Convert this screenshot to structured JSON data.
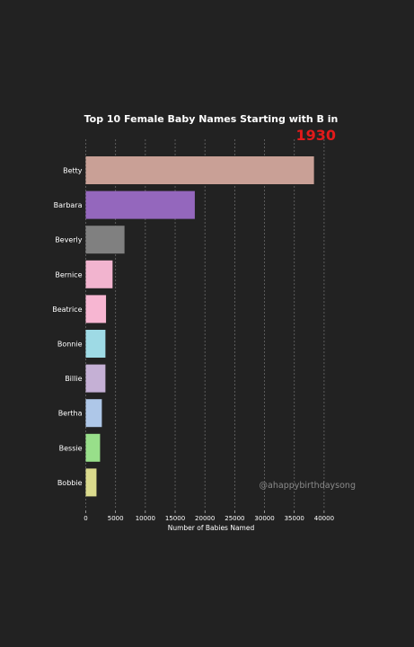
{
  "chart_data": {
    "type": "bar",
    "orientation": "horizontal",
    "title": "Top 10 Female Baby Names Starting with B in",
    "year": "1930",
    "xlabel": "Number of Babies Named",
    "ylabel": "",
    "xlim": [
      0,
      41500
    ],
    "xticks": [
      0,
      5000,
      10000,
      15000,
      20000,
      25000,
      30000,
      35000,
      40000
    ],
    "grid": true,
    "categories": [
      "Betty",
      "Barbara",
      "Beverly",
      "Bernice",
      "Beatrice",
      "Bonnie",
      "Billie",
      "Bertha",
      "Bessie",
      "Bobbie"
    ],
    "values": [
      38300,
      18300,
      6500,
      4500,
      3400,
      3300,
      3300,
      2700,
      2400,
      1800
    ],
    "colors": [
      "#c9a096",
      "#9467bd",
      "#808080",
      "#f2b4cf",
      "#f7b6d2",
      "#9edae5",
      "#c5b0d5",
      "#aec7e8",
      "#98df8a",
      "#dbdb8d"
    ],
    "watermark": "@ahappybirthdaysong"
  }
}
